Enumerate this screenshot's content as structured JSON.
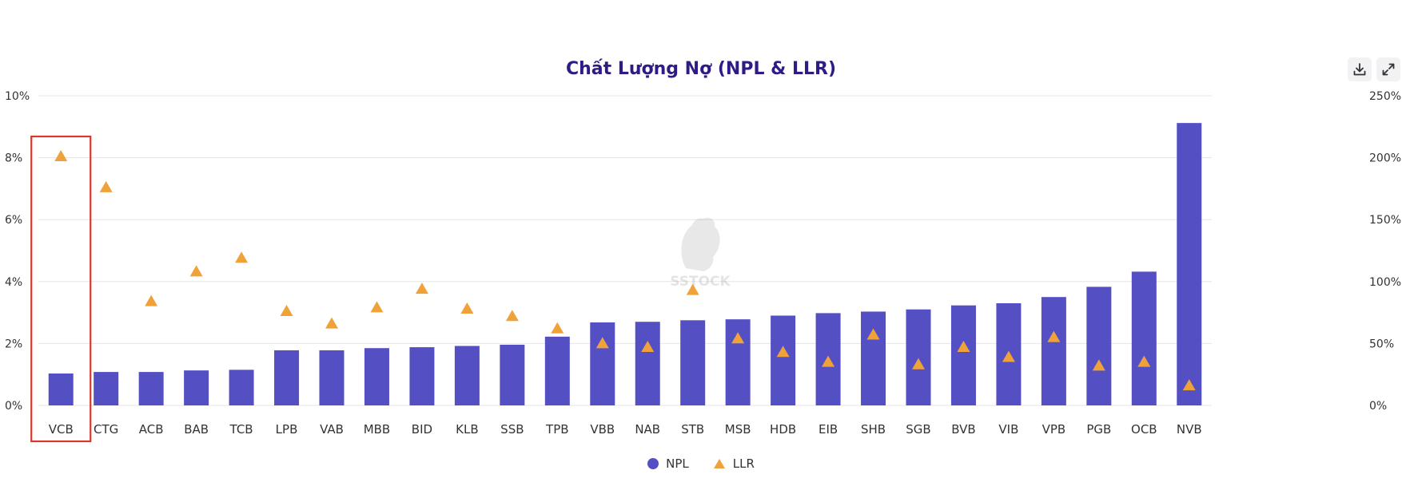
{
  "toolbar": {
    "download_icon": "download-icon",
    "fullscreen_icon": "expand-icon"
  },
  "colors": {
    "npl": "#5450c4",
    "llr": "#f0a23a",
    "title": "#2f1a86",
    "highlight": "#d9392c",
    "grid": "#e5e5e5"
  },
  "chart_data": {
    "type": "bar",
    "title": "Chất Lượng Nợ (NPL & LLR)",
    "categories": [
      "VCB",
      "CTG",
      "ACB",
      "BAB",
      "TCB",
      "LPB",
      "VAB",
      "MBB",
      "BID",
      "KLB",
      "SSB",
      "TPB",
      "VBB",
      "NAB",
      "STB",
      "MSB",
      "HDB",
      "EIB",
      "SHB",
      "SGB",
      "BVB",
      "VIB",
      "VPB",
      "PGB",
      "OCB",
      "NVB"
    ],
    "series": [
      {
        "name": "NPL",
        "type": "bar",
        "axis": "left",
        "values": [
          1.03,
          1.08,
          1.08,
          1.13,
          1.15,
          1.78,
          1.78,
          1.85,
          1.88,
          1.92,
          1.96,
          2.22,
          2.68,
          2.7,
          2.75,
          2.78,
          2.9,
          2.98,
          3.03,
          3.1,
          3.23,
          3.3,
          3.5,
          3.83,
          4.32,
          9.12
        ]
      },
      {
        "name": "LLR",
        "type": "scatter",
        "marker": "triangle",
        "axis": "right",
        "values": [
          201,
          176,
          84,
          108,
          119,
          76,
          66,
          79,
          94,
          78,
          72,
          62,
          50,
          47,
          93,
          54,
          43,
          35,
          57,
          33,
          47,
          39,
          55,
          32,
          35,
          16
        ]
      }
    ],
    "y_left": {
      "ylim": [
        0,
        10
      ],
      "ticks": [
        "0%",
        "2%",
        "4%",
        "6%",
        "8%",
        "10%"
      ],
      "tick_values": [
        0,
        2,
        4,
        6,
        8,
        10
      ]
    },
    "y_right": {
      "ylim": [
        0,
        250
      ],
      "ticks": [
        "0%",
        "50%",
        "100%",
        "150%",
        "200%",
        "250%"
      ],
      "tick_values": [
        0,
        50,
        100,
        150,
        200,
        250
      ]
    },
    "grid": true,
    "legend": "bottom-center",
    "highlighted_category": "VCB",
    "watermark": "SSTOCK"
  }
}
